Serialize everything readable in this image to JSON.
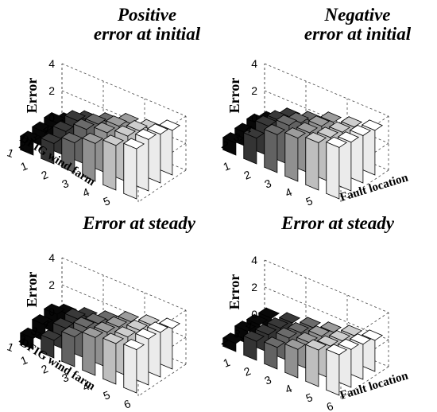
{
  "charts": [
    {
      "title_lines": [
        "Positive",
        "error at initial"
      ],
      "zlabel": "Error",
      "xlabel": "",
      "ylabel": "DFIG wind farm",
      "z_ticks": [
        "0",
        "2",
        "4"
      ],
      "x_ticks": [
        "1",
        "2",
        "3",
        "4",
        "5",
        "6"
      ],
      "y_ticks": [
        "1",
        "2",
        "3",
        "4"
      ]
    },
    {
      "title_lines": [
        "Negative",
        "error at initial"
      ],
      "zlabel": "Error",
      "xlabel": "Fault location",
      "ylabel": "",
      "z_ticks": [
        "0",
        "2",
        "4"
      ],
      "x_ticks": [
        "1",
        "2",
        "3",
        "4",
        "5",
        "6"
      ],
      "y_ticks": [
        "1",
        "2",
        "3",
        "4"
      ]
    },
    {
      "title_lines": [
        "Error at steady"
      ],
      "zlabel": "Error",
      "xlabel": "",
      "ylabel": "DFIG wind farm",
      "z_ticks": [
        "0",
        "2",
        "4"
      ],
      "x_ticks": [
        "1",
        "2",
        "3",
        "4",
        "5",
        "6"
      ],
      "y_ticks": [
        "1",
        "2",
        "3",
        "4"
      ]
    },
    {
      "title_lines": [
        "Error at steady"
      ],
      "zlabel": "Error",
      "xlabel": "Fault location",
      "ylabel": "",
      "z_ticks": [
        "0",
        "2",
        "4"
      ],
      "x_ticks": [
        "1",
        "2",
        "3",
        "4",
        "5",
        "6"
      ],
      "y_ticks": [
        "1",
        "2",
        "3",
        "4"
      ]
    }
  ],
  "chart_data": [
    {
      "type": "bar3d",
      "title": "Positive error at initial",
      "xlabel": "",
      "ylabel": "DFIG wind farm",
      "zlabel": "Error",
      "x": [
        1,
        2,
        3,
        4,
        5,
        6
      ],
      "y": [
        1,
        2,
        3,
        4
      ],
      "zlim": [
        0,
        4
      ],
      "values": [
        [
          1.0,
          1.5,
          2.2,
          2.8,
          3.3,
          3.7
        ],
        [
          1.1,
          1.8,
          2.6,
          3.0,
          3.4,
          3.8
        ],
        [
          1.2,
          2.0,
          2.4,
          2.9,
          3.2,
          3.6
        ],
        [
          0.6,
          1.4,
          1.9,
          2.5,
          2.7,
          3.3
        ]
      ],
      "grid": true,
      "colormap": "gray"
    },
    {
      "type": "bar3d",
      "title": "Negative error at initial",
      "xlabel": "Fault location",
      "ylabel": "",
      "zlabel": "Error",
      "x": [
        1,
        2,
        3,
        4,
        5,
        6
      ],
      "y": [
        1,
        2,
        3,
        4
      ],
      "zlim": [
        0,
        4
      ],
      "values": [
        [
          0.9,
          1.9,
          2.8,
          3.2,
          3.5,
          3.8
        ],
        [
          1.0,
          2.2,
          2.9,
          3.0,
          3.3,
          3.6
        ],
        [
          1.1,
          2.0,
          2.5,
          2.9,
          3.1,
          3.5
        ],
        [
          0.7,
          1.6,
          2.0,
          2.6,
          2.9,
          3.3
        ]
      ],
      "grid": true,
      "colormap": "gray"
    },
    {
      "type": "bar3d",
      "title": "Error at steady",
      "xlabel": "",
      "ylabel": "DFIG wind farm",
      "zlabel": "Error",
      "x": [
        1,
        2,
        3,
        4,
        5,
        6
      ],
      "y": [
        1,
        2,
        3,
        4
      ],
      "zlim": [
        0,
        4
      ],
      "values": [
        [
          0.8,
          1.3,
          2.2,
          2.8,
          3.0,
          3.2
        ],
        [
          1.2,
          1.6,
          2.3,
          2.6,
          2.9,
          3.4
        ],
        [
          1.4,
          1.7,
          2.0,
          2.4,
          2.8,
          3.3
        ],
        [
          0.8,
          1.2,
          1.6,
          2.2,
          2.6,
          3.0
        ]
      ],
      "grid": true,
      "colormap": "gray"
    },
    {
      "type": "bar3d",
      "title": "Error at steady",
      "xlabel": "Fault location",
      "ylabel": "",
      "zlabel": "Error",
      "x": [
        1,
        2,
        3,
        4,
        5,
        6
      ],
      "y": [
        1,
        2,
        3,
        4
      ],
      "zlim": [
        0,
        4
      ],
      "values": [
        [
          0.6,
          1.4,
          1.6,
          2.1,
          2.7,
          3.0
        ],
        [
          0.9,
          1.3,
          1.7,
          2.0,
          2.4,
          2.8
        ],
        [
          0.8,
          1.2,
          1.5,
          1.9,
          2.2,
          2.6
        ],
        [
          0.7,
          1.0,
          1.3,
          1.6,
          2.0,
          2.3
        ]
      ],
      "grid": true,
      "colormap": "gray"
    }
  ]
}
